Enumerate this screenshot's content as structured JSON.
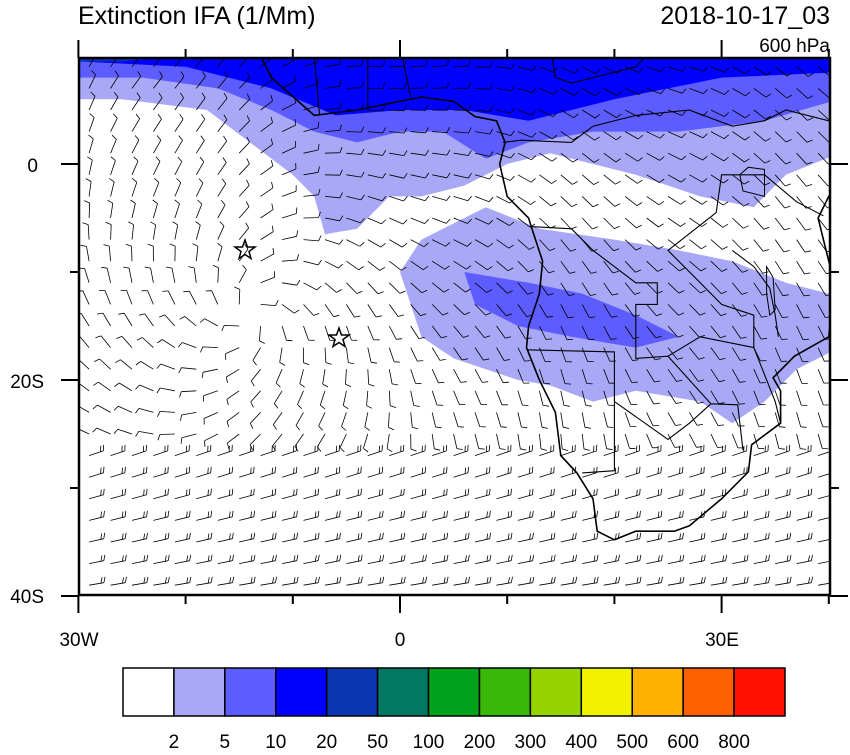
{
  "header": {
    "title": "Extinction IFA (1/Mm)",
    "time": "2018-10-17_03",
    "level": "600 hPa"
  },
  "map": {
    "y_labels": [
      "0",
      "20S",
      "40S"
    ],
    "x_labels": [
      "30W",
      "0",
      "30E"
    ]
  },
  "colorbar": {
    "colors": [
      "#ffffff",
      "#a8a8f6",
      "#5c5cff",
      "#0000ff",
      "#0a35b0",
      "#007862",
      "#00a31c",
      "#3ab80a",
      "#96d400",
      "#f2f200",
      "#ffb000",
      "#ff6000",
      "#ff1000"
    ],
    "labels": [
      "2",
      "5",
      "10",
      "20",
      "50",
      "100",
      "200",
      "300",
      "400",
      "500",
      "600",
      "800"
    ]
  }
}
